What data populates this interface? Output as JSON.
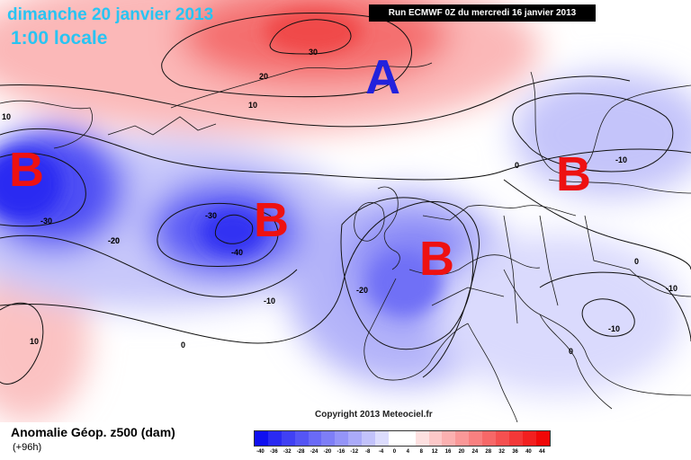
{
  "header": {
    "date": "dimanche 20 janvier 2013",
    "time": "1:00 locale",
    "run": "Run ECMWF 0Z du mercredi 16 janvier 2013"
  },
  "copyright": "Copyright 2013 Meteociel.fr",
  "centers": [
    {
      "label": "A",
      "type": "high",
      "color": "#2222dd"
    },
    {
      "label": "B",
      "type": "low",
      "color": "#ee1111"
    },
    {
      "label": "B",
      "type": "low",
      "color": "#ee1111"
    },
    {
      "label": "B",
      "type": "low",
      "color": "#ee1111"
    },
    {
      "label": "B",
      "type": "low",
      "color": "#ee1111"
    }
  ],
  "contour_labels": [
    "30",
    "20",
    "10",
    "10",
    "0",
    "-10",
    "-20",
    "-30",
    "-40",
    "-30",
    "-20",
    "-10",
    "0",
    "-20",
    "0",
    "-10",
    "-10",
    "0",
    "10"
  ],
  "legend": {
    "title": "Anomalie Géop. z500 (dam)",
    "subtitle": "(+96h)",
    "ticks": [
      "-40",
      "-36",
      "-32",
      "-28",
      "-24",
      "-20",
      "-16",
      "-12",
      "-8",
      "-4",
      "0",
      "4",
      "8",
      "12",
      "16",
      "20",
      "24",
      "28",
      "32",
      "36",
      "40",
      "44"
    ],
    "colors": [
      "#1010f0",
      "#2a2af2",
      "#4040f4",
      "#5555f5",
      "#6a6af6",
      "#7e7ef7",
      "#9494f8",
      "#aaaaf9",
      "#c2c2fb",
      "#dcdcfd",
      "#ffffff",
      "#ffffff",
      "#fde0e0",
      "#fcc8c8",
      "#fbb0b0",
      "#fa9898",
      "#f88080",
      "#f76868",
      "#f55050",
      "#f33838",
      "#f22020",
      "#f00808"
    ]
  }
}
